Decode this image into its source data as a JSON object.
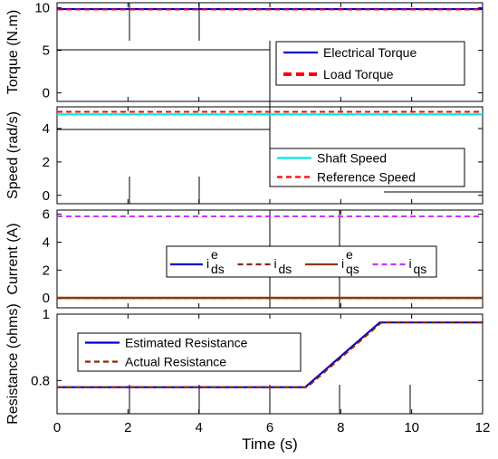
{
  "chart_data": [
    {
      "type": "line",
      "ylabel": "Torque (N.m)",
      "xlim": [
        0,
        12
      ],
      "ylim": [
        -1,
        10.6
      ],
      "yticks": [
        0,
        5,
        10
      ],
      "yticklabels": [
        "0",
        "5",
        "10"
      ],
      "legend_position": "top-right",
      "series": [
        {
          "name": "Electrical Torque",
          "color": "#0000cc",
          "style": "solid",
          "x": [
            0,
            12
          ],
          "y": [
            9.85,
            9.85
          ]
        },
        {
          "name": "Load Torque",
          "color": "#ff0000",
          "style": "dashed",
          "x": [
            0,
            12
          ],
          "y": [
            9.8,
            9.8
          ]
        }
      ]
    },
    {
      "type": "line",
      "ylabel": "Speed (rad/s)",
      "xlim": [
        0,
        12
      ],
      "ylim": [
        -0.5,
        5.3
      ],
      "yticks": [
        0,
        2,
        4
      ],
      "yticklabels": [
        "0",
        "2",
        "4"
      ],
      "legend_position": "bottom-right",
      "series": [
        {
          "name": "Shaft Speed",
          "color": "#00e5e5",
          "style": "solid",
          "x": [
            0,
            12
          ],
          "y": [
            4.85,
            4.85
          ]
        },
        {
          "name": "Reference Speed",
          "color": "#ff0000",
          "style": "dashed",
          "x": [
            0,
            12
          ],
          "y": [
            5.0,
            5.0
          ]
        }
      ]
    },
    {
      "type": "line",
      "ylabel": "Current (A)",
      "xlim": [
        0,
        12
      ],
      "ylim": [
        -0.7,
        6.3
      ],
      "yticks": [
        0,
        2,
        4,
        6
      ],
      "yticklabels": [
        "0",
        "2",
        "4",
        "6"
      ],
      "legend_position": "center",
      "series": [
        {
          "name": "i",
          "sup": "e",
          "sub": "ds",
          "color": "#0000cc",
          "style": "solid",
          "x": [
            0,
            12
          ],
          "y": [
            0,
            0
          ]
        },
        {
          "name": "i",
          "sup": "",
          "sub": "ds",
          "color": "#8b2500",
          "style": "dashed",
          "x": [
            0,
            12
          ],
          "y": [
            0,
            0
          ]
        },
        {
          "name": "i",
          "sup": "e",
          "sub": "qs",
          "color": "#8b3a00",
          "style": "solid",
          "x": [
            0,
            12
          ],
          "y": [
            0.02,
            0.02
          ]
        },
        {
          "name": "i",
          "sup": "",
          "sub": "qs",
          "color": "#cc33ff",
          "style": "dashed",
          "x": [
            0,
            12
          ],
          "y": [
            5.85,
            5.85
          ]
        }
      ]
    },
    {
      "type": "line",
      "ylabel": "Resistance (ohms)",
      "xlabel": "Time (s)",
      "xlim": [
        0,
        12
      ],
      "ylim": [
        0.7,
        1.0
      ],
      "yticks": [
        0.8,
        1
      ],
      "yticklabels": [
        "0.8",
        "1"
      ],
      "xticks": [
        0,
        2,
        4,
        6,
        8,
        10,
        12
      ],
      "xticklabels": [
        "0",
        "2",
        "4",
        "6",
        "8",
        "10",
        "12"
      ],
      "legend_position": "top-left",
      "series": [
        {
          "name": "Estimated Resistance",
          "color": "#0000cc",
          "style": "solid",
          "x": [
            0,
            7,
            9.1,
            12
          ],
          "y": [
            0.78,
            0.78,
            0.975,
            0.975
          ]
        },
        {
          "name": "Actual Resistance",
          "color": "#8b2500",
          "style": "dashed",
          "x": [
            0,
            7.05,
            9.15,
            12
          ],
          "y": [
            0.78,
            0.78,
            0.975,
            0.975
          ]
        }
      ]
    }
  ]
}
